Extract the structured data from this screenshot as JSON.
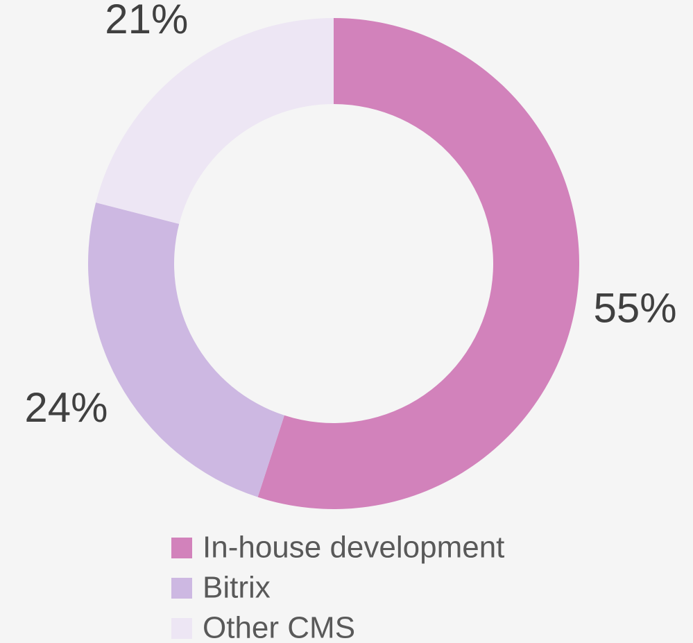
{
  "chart_data": {
    "type": "donut",
    "categories": [
      "In-house development",
      "Bitrix",
      "Other CMS"
    ],
    "values": [
      55,
      24,
      21
    ],
    "value_labels": [
      "55%",
      "24%",
      "21%"
    ],
    "colors": [
      "#d282bb",
      "#cdb8e2",
      "#ede6f4"
    ],
    "legend": "bottom"
  }
}
